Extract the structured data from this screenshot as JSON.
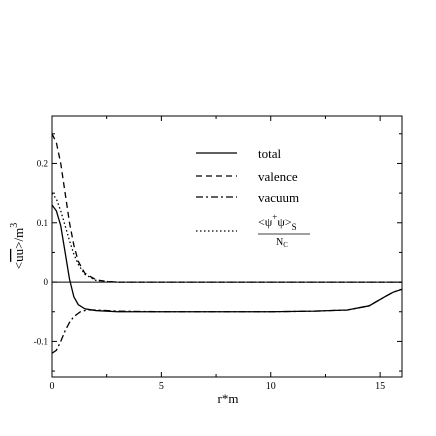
{
  "chart_data": {
    "type": "line",
    "xlabel": "r*m",
    "ylabel": "<uū>/m³",
    "ylabel_parts": {
      "lhs": "<",
      "uu": "uu",
      "rhs": ">/m",
      "exp": "3"
    },
    "xlim": [
      0,
      16
    ],
    "ylim": [
      -0.16,
      0.28
    ],
    "xticks": [
      0,
      5,
      10,
      15
    ],
    "yticks": [
      -0.1,
      0,
      0.1,
      0.2
    ],
    "xtick_labels": [
      "0",
      "5",
      "10",
      "15"
    ],
    "ytick_labels": [
      "-0.1",
      "0",
      "0.1",
      "0.2"
    ],
    "grid": false,
    "legend_position": "top-right",
    "zero_line": true,
    "series": [
      {
        "name": "total",
        "style": "solid",
        "x": [
          0,
          0.2,
          0.4,
          0.6,
          0.8,
          1.0,
          1.2,
          1.5,
          2.0,
          3.0,
          5.0,
          8.0,
          10.0,
          12.0,
          13.5,
          14.5,
          15.2,
          15.6,
          16.0
        ],
        "y": [
          0.13,
          0.12,
          0.095,
          0.05,
          0.005,
          -0.025,
          -0.038,
          -0.045,
          -0.048,
          -0.05,
          -0.05,
          -0.05,
          -0.05,
          -0.049,
          -0.047,
          -0.04,
          -0.025,
          -0.017,
          -0.012
        ]
      },
      {
        "name": "valence",
        "style": "dashed",
        "x": [
          0,
          0.2,
          0.4,
          0.6,
          0.8,
          1.0,
          1.2,
          1.5,
          2.0,
          2.5,
          3.0,
          5.0,
          10.0,
          16.0
        ],
        "y": [
          0.25,
          0.235,
          0.2,
          0.15,
          0.1,
          0.062,
          0.035,
          0.015,
          0.004,
          0.001,
          0.0,
          0.0,
          0.0,
          0.0
        ]
      },
      {
        "name": "vacuum",
        "style": "dashdot",
        "x": [
          0,
          0.2,
          0.4,
          0.6,
          0.8,
          1.0,
          1.3,
          1.6,
          2.0,
          3.0,
          5.0,
          8.0,
          10.0,
          12.0,
          13.5,
          14.5,
          15.2,
          15.6,
          16.0
        ],
        "y": [
          -0.12,
          -0.115,
          -0.1,
          -0.082,
          -0.068,
          -0.058,
          -0.05,
          -0.047,
          -0.047,
          -0.049,
          -0.05,
          -0.05,
          -0.05,
          -0.049,
          -0.047,
          -0.04,
          -0.025,
          -0.017,
          -0.012
        ]
      },
      {
        "name": "<ψ⁺ψ>_S / N_C",
        "legend_parts": {
          "numerator": "<ψ",
          "dagger": "+",
          "mid": "ψ>",
          "sub": "S",
          "denominator": "N",
          "den_sub": "C"
        },
        "style": "dotted",
        "x": [
          0,
          0.2,
          0.4,
          0.6,
          0.8,
          1.0,
          1.2,
          1.5,
          2.0,
          2.5,
          3.0,
          5.0,
          10.0,
          16.0
        ],
        "y": [
          0.15,
          0.14,
          0.12,
          0.095,
          0.07,
          0.047,
          0.03,
          0.013,
          0.003,
          0.001,
          0.0,
          0.0,
          0.0,
          0.0
        ]
      }
    ]
  }
}
